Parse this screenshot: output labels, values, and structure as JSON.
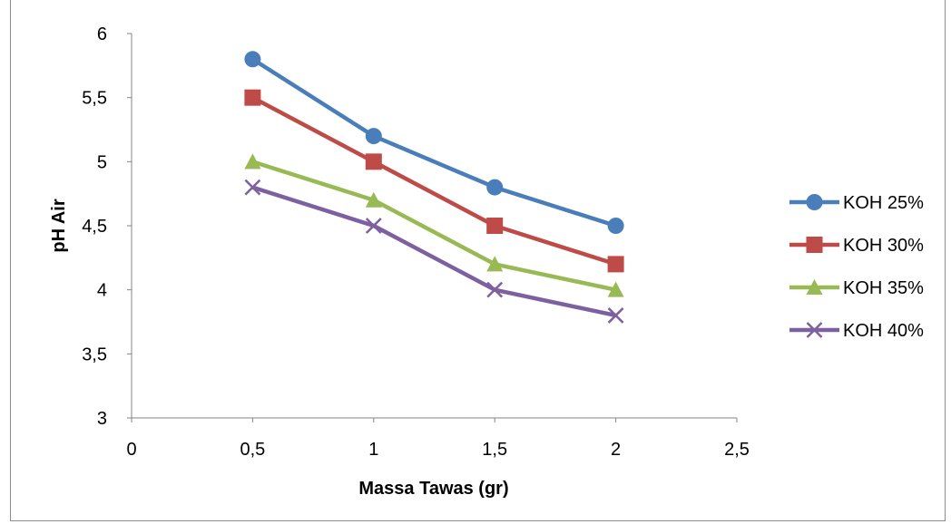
{
  "chart_data": {
    "type": "line",
    "title": "",
    "xlabel": "Massa Tawas (gr)",
    "ylabel": "pH Air",
    "xlim": [
      0,
      2.5
    ],
    "ylim": [
      3,
      6
    ],
    "xticks": [
      0,
      0.5,
      1,
      1.5,
      2,
      2.5
    ],
    "xtick_labels": [
      "0",
      "0,5",
      "1",
      "1,5",
      "2",
      "2,5"
    ],
    "yticks": [
      3,
      3.5,
      4,
      4.5,
      5,
      5.5,
      6
    ],
    "ytick_labels": [
      "3",
      "3,5",
      "4",
      "4,5",
      "5",
      "5,5",
      "6"
    ],
    "grid": false,
    "legend_position": "right",
    "x": [
      0.5,
      1,
      1.5,
      2
    ],
    "series": [
      {
        "name": "KOH 25%",
        "values": [
          5.8,
          5.2,
          4.8,
          4.5
        ],
        "color": "#4a7ebb",
        "marker": "circle"
      },
      {
        "name": "KOH 30%",
        "values": [
          5.5,
          5.0,
          4.5,
          4.2
        ],
        "color": "#be4b48",
        "marker": "square"
      },
      {
        "name": "KOH 35%",
        "values": [
          5.0,
          4.7,
          4.2,
          4.0
        ],
        "color": "#98b954",
        "marker": "triangle"
      },
      {
        "name": "KOH 40%",
        "values": [
          4.8,
          4.5,
          4.0,
          3.8
        ],
        "color": "#7d60a0",
        "marker": "x"
      }
    ]
  }
}
